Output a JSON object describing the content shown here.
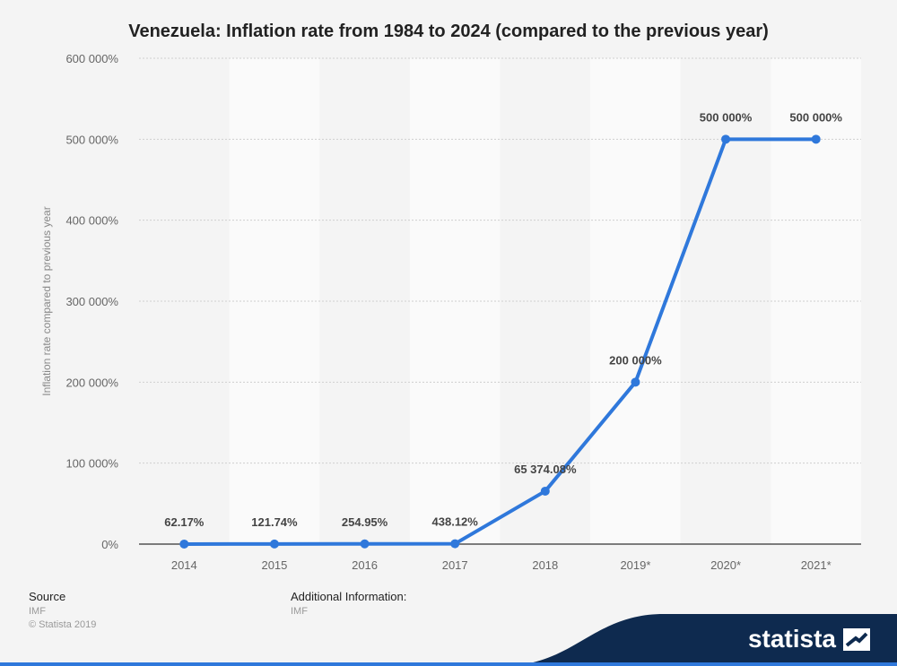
{
  "chart_data": {
    "type": "line",
    "title": "Venezuela: Inflation rate from 1984 to 2024 (compared to the previous year)",
    "ylabel": "Inflation rate compared to previous year",
    "xlabel": "",
    "ylim": [
      0,
      600000
    ],
    "y_ticks": [
      0,
      100000,
      200000,
      300000,
      400000,
      500000,
      600000
    ],
    "y_tick_labels": [
      "0%",
      "100 000%",
      "200 000%",
      "300 000%",
      "400 000%",
      "500 000%",
      "600 000%"
    ],
    "categories": [
      "2014",
      "2015",
      "2016",
      "2017",
      "2018",
      "2019*",
      "2020*",
      "2021*"
    ],
    "values": [
      62.17,
      121.74,
      254.95,
      438.12,
      65374.08,
      200000,
      500000,
      500000
    ],
    "data_labels": [
      "62.17%",
      "121.74%",
      "254.95%",
      "438.12%",
      "65 374.08%",
      "200 000%",
      "500 000%",
      "500 000%"
    ],
    "line_color": "#2f78db",
    "grid": true
  },
  "footer": {
    "source_title": "Source",
    "source_value": "IMF",
    "copyright": "© Statista 2019",
    "additional_title": "Additional Information:",
    "additional_value": "IMF"
  },
  "brand": {
    "name": "statista",
    "band_color": "#0e2a4f"
  }
}
